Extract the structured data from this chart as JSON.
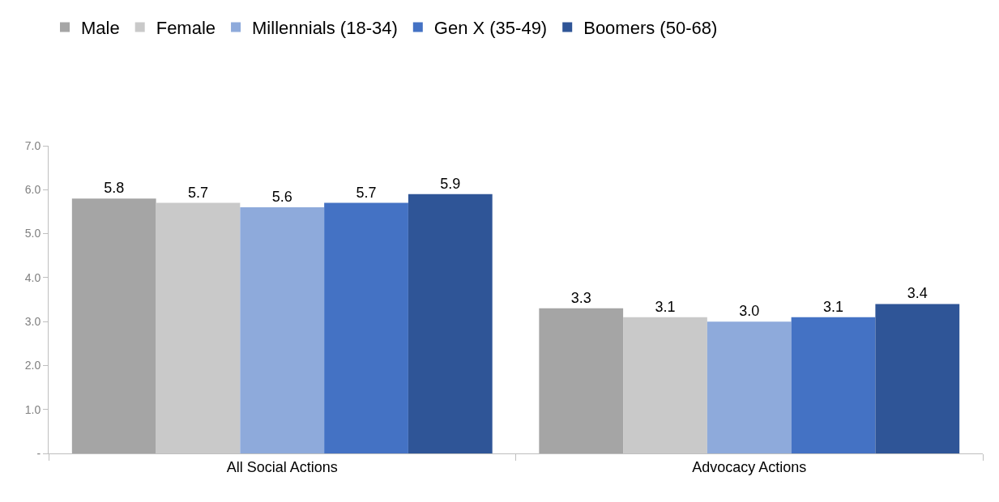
{
  "chart_data": {
    "type": "bar",
    "categories": [
      "All Social Actions",
      "Advocacy Actions"
    ],
    "series": [
      {
        "name": "Male",
        "color": "#a5a5a5",
        "values": [
          5.8,
          3.3
        ],
        "value_labels": [
          "5.8",
          "3.3"
        ]
      },
      {
        "name": "Female",
        "color": "#c9c9c9",
        "values": [
          5.7,
          3.1
        ],
        "value_labels": [
          "5.7",
          "3.1"
        ]
      },
      {
        "name": "Millennials (18-34)",
        "color": "#8eaadb",
        "values": [
          5.6,
          3.0
        ],
        "value_labels": [
          "5.6",
          "3.0"
        ]
      },
      {
        "name": "Gen X (35-49)",
        "color": "#4472c4",
        "values": [
          5.7,
          3.1
        ],
        "value_labels": [
          "5.7",
          "3.1"
        ]
      },
      {
        "name": "Boomers (50-68)",
        "color": "#2f5597",
        "values": [
          5.9,
          3.4
        ],
        "value_labels": [
          "5.9",
          "3.4"
        ]
      }
    ],
    "ylim": [
      0,
      7
    ],
    "yticks": [
      {
        "value": 0,
        "label": "-"
      },
      {
        "value": 1,
        "label": "1.0"
      },
      {
        "value": 2,
        "label": "2.0"
      },
      {
        "value": 3,
        "label": "3.0"
      },
      {
        "value": 4,
        "label": "4.0"
      },
      {
        "value": 5,
        "label": "5.0"
      },
      {
        "value": 6,
        "label": "6.0"
      },
      {
        "value": 7,
        "label": "7.0"
      }
    ],
    "grid": false,
    "legend": "top"
  }
}
